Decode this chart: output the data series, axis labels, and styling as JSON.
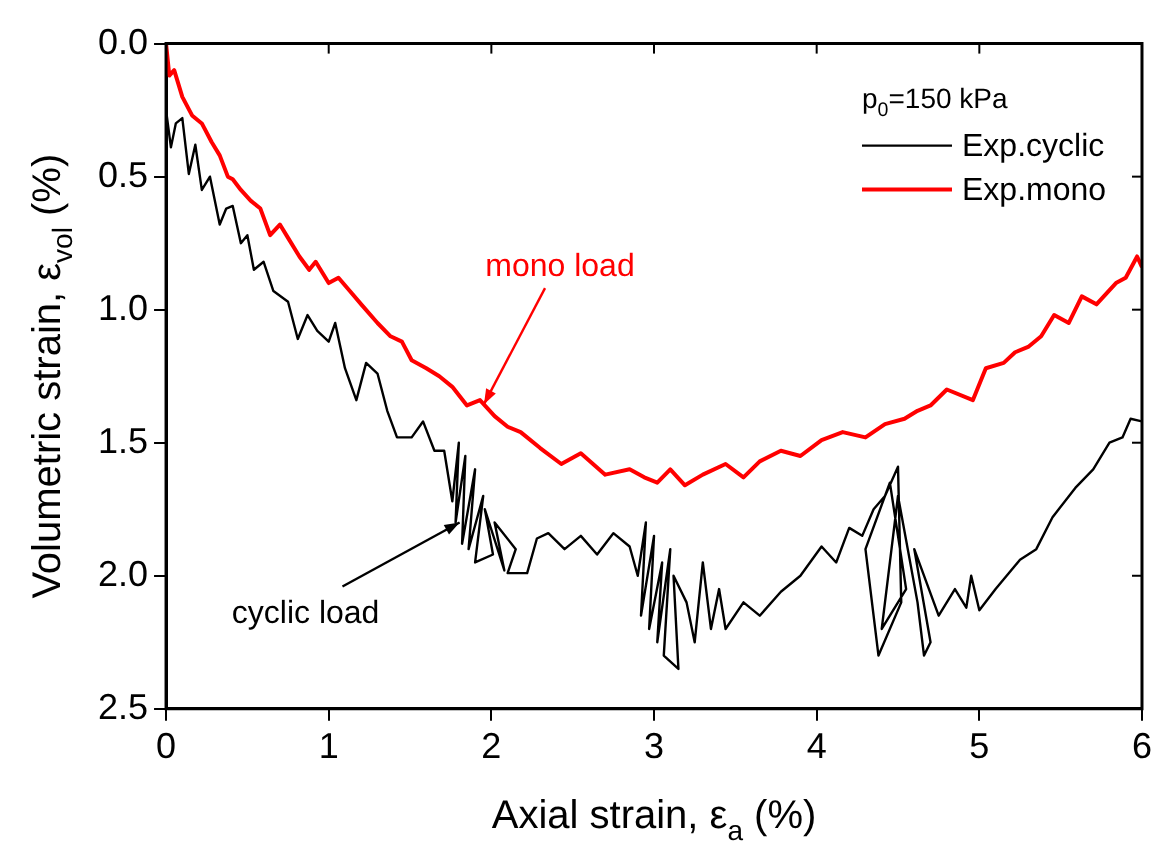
{
  "chart_data": {
    "type": "line",
    "xlabel": "Axial strain, ε$_{a}$ (%)",
    "ylabel": "Volumetric strain, ε$_{vol}$ (%)",
    "legend_title": "p$_{0}$=150 kPa",
    "legend": "top right",
    "marker": "none",
    "line_style": "solid",
    "grid": false,
    "xlim": [
      0,
      6
    ],
    "xticks": [
      0,
      1,
      2,
      3,
      4,
      5,
      6
    ],
    "ylim": [
      2.5,
      0
    ],
    "yticks": [
      {
        "value": 0,
        "label": "0.0"
      },
      {
        "value": 0.5,
        "label": "0.5"
      },
      {
        "value": 1,
        "label": "1.0"
      },
      {
        "value": 1.5,
        "label": "1.5"
      },
      {
        "value": 2,
        "label": "2.0"
      },
      {
        "value": 2.5,
        "label": "2.5"
      }
    ],
    "series": [
      {
        "name": "Exp.cyclic",
        "color": "#000000",
        "x": [
          0,
          0.03,
          0.06,
          0.1,
          0.14,
          0.18,
          0.22,
          0.27,
          0.33,
          0.37,
          0.41,
          0.46,
          0.5,
          0.54,
          0.6,
          0.66,
          0.75,
          0.81,
          0.87,
          0.93,
          1.0,
          1.04,
          1.1,
          1.17,
          1.23,
          1.3,
          1.36,
          1.42,
          1.51,
          1.58,
          1.65,
          1.71,
          1.76,
          1.8,
          1.78,
          1.84,
          1.82,
          1.9,
          1.86,
          1.95,
          1.9,
          2.01,
          1.96,
          2.08,
          2.02,
          2.15,
          2.1,
          2.22,
          2.28,
          2.35,
          2.45,
          2.55,
          2.65,
          2.75,
          2.85,
          2.9,
          2.95,
          2.92,
          3.0,
          2.97,
          3.05,
          3.02,
          3.1,
          3.06,
          3.15,
          3.12,
          3.2,
          3.25,
          3.3,
          3.35,
          3.4,
          3.44,
          3.55,
          3.65,
          3.78,
          3.9,
          4.03,
          4.12,
          4.2,
          4.28,
          4.35,
          4.42,
          4.5,
          4.52,
          4.38,
          4.3,
          4.45,
          4.55,
          4.4,
          4.5,
          4.62,
          4.66,
          4.7,
          4.6,
          4.75,
          4.85,
          4.92,
          4.95,
          5.0,
          5.1,
          5.25,
          5.35,
          5.45,
          5.59,
          5.7,
          5.8,
          5.88,
          5.93,
          6.0
        ],
        "values": [
          0.25,
          0.39,
          0.3,
          0.28,
          0.49,
          0.38,
          0.55,
          0.5,
          0.68,
          0.62,
          0.61,
          0.75,
          0.72,
          0.85,
          0.82,
          0.93,
          0.97,
          1.11,
          1.02,
          1.08,
          1.12,
          1.05,
          1.22,
          1.34,
          1.2,
          1.24,
          1.38,
          1.48,
          1.48,
          1.42,
          1.53,
          1.53,
          1.72,
          1.5,
          1.8,
          1.55,
          1.88,
          1.6,
          1.9,
          1.7,
          1.95,
          1.92,
          1.75,
          1.98,
          1.8,
          1.9,
          1.99,
          1.99,
          1.86,
          1.84,
          1.9,
          1.85,
          1.92,
          1.84,
          1.89,
          2.0,
          1.8,
          2.15,
          1.85,
          2.2,
          1.95,
          2.25,
          1.9,
          2.3,
          2.35,
          2.0,
          2.1,
          2.25,
          1.95,
          2.2,
          2.05,
          2.2,
          2.1,
          2.15,
          2.06,
          2.0,
          1.89,
          1.95,
          1.82,
          1.85,
          1.75,
          1.7,
          1.59,
          2.1,
          2.3,
          1.9,
          1.65,
          2.05,
          2.2,
          1.7,
          2.1,
          2.3,
          2.25,
          1.9,
          2.15,
          2.05,
          2.12,
          2.0,
          2.13,
          2.05,
          1.94,
          1.9,
          1.78,
          1.67,
          1.6,
          1.5,
          1.48,
          1.41,
          1.42
        ]
      },
      {
        "name": "Exp.mono",
        "color": "#ff0000",
        "x": [
          0,
          0.02,
          0.05,
          0.1,
          0.16,
          0.22,
          0.28,
          0.33,
          0.38,
          0.41,
          0.46,
          0.52,
          0.58,
          0.64,
          0.7,
          0.75,
          0.82,
          0.88,
          0.92,
          1.0,
          1.06,
          1.13,
          1.2,
          1.3,
          1.38,
          1.45,
          1.51,
          1.6,
          1.68,
          1.76,
          1.85,
          1.93,
          2.02,
          2.1,
          2.18,
          2.3,
          2.43,
          2.55,
          2.7,
          2.85,
          2.94,
          3.02,
          3.1,
          3.19,
          3.3,
          3.44,
          3.55,
          3.65,
          3.78,
          3.9,
          4.03,
          4.16,
          4.3,
          4.42,
          4.54,
          4.62,
          4.7,
          4.8,
          4.96,
          5.04,
          5.15,
          5.22,
          5.3,
          5.38,
          5.46,
          5.55,
          5.63,
          5.72,
          5.84,
          5.9,
          5.97,
          6.0
        ],
        "values": [
          0,
          0.12,
          0.1,
          0.2,
          0.27,
          0.3,
          0.37,
          0.42,
          0.5,
          0.51,
          0.55,
          0.59,
          0.62,
          0.72,
          0.68,
          0.73,
          0.8,
          0.85,
          0.82,
          0.9,
          0.88,
          0.93,
          0.98,
          1.05,
          1.1,
          1.12,
          1.19,
          1.22,
          1.25,
          1.29,
          1.36,
          1.34,
          1.4,
          1.44,
          1.46,
          1.52,
          1.58,
          1.54,
          1.62,
          1.6,
          1.63,
          1.65,
          1.6,
          1.66,
          1.62,
          1.58,
          1.63,
          1.57,
          1.53,
          1.55,
          1.49,
          1.46,
          1.48,
          1.43,
          1.41,
          1.38,
          1.36,
          1.3,
          1.34,
          1.22,
          1.2,
          1.16,
          1.14,
          1.1,
          1.02,
          1.05,
          0.95,
          0.98,
          0.9,
          0.88,
          0.8,
          0.84
        ]
      }
    ],
    "annotations": [
      {
        "text": "mono load",
        "x": 1.93,
        "y": 1.34
      },
      {
        "text": "cyclic load",
        "x": 1.78,
        "y": 1.8
      }
    ]
  }
}
